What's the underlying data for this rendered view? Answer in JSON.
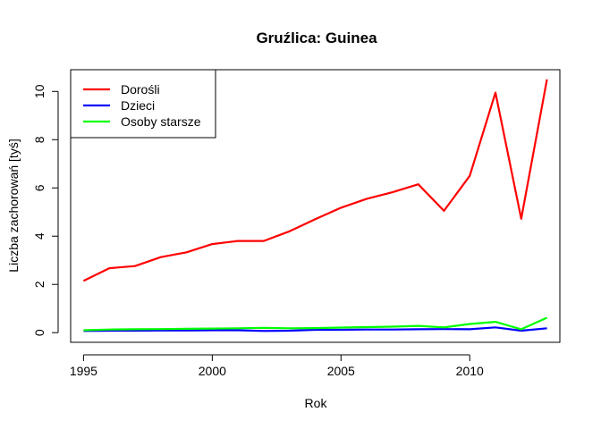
{
  "chart_data": {
    "type": "line",
    "title": "Gruźlica: Guinea",
    "xlabel": "Rok",
    "ylabel": "Liczba zachorowań [tyś]",
    "x": [
      1995,
      1996,
      1997,
      1998,
      1999,
      2000,
      2001,
      2002,
      2003,
      2004,
      2005,
      2006,
      2007,
      2008,
      2009,
      2010,
      2011,
      2012,
      2013
    ],
    "xlim": [
      1994.5,
      2013.5
    ],
    "ylim": [
      -0.4,
      10.9
    ],
    "xticks": [
      1995,
      2000,
      2005,
      2010
    ],
    "yticks": [
      0,
      2,
      4,
      6,
      8,
      10
    ],
    "grid": false,
    "legend_position": "top-left",
    "series": [
      {
        "name": "Dorośli",
        "color": "#ff0000",
        "values": [
          2.15,
          2.67,
          2.76,
          3.13,
          3.33,
          3.67,
          3.8,
          3.8,
          4.2,
          4.7,
          5.18,
          5.55,
          5.82,
          6.15,
          5.05,
          6.5,
          9.95,
          4.72,
          10.5
        ]
      },
      {
        "name": "Dzieci",
        "color": "#0000ff",
        "values": [
          0.07,
          0.08,
          0.08,
          0.09,
          0.09,
          0.1,
          0.1,
          0.07,
          0.08,
          0.12,
          0.12,
          0.13,
          0.13,
          0.14,
          0.15,
          0.14,
          0.22,
          0.08,
          0.18
        ]
      },
      {
        "name": "Osoby starsze",
        "color": "#00ff00",
        "values": [
          0.1,
          0.13,
          0.14,
          0.15,
          0.16,
          0.17,
          0.18,
          0.2,
          0.18,
          0.19,
          0.21,
          0.23,
          0.25,
          0.28,
          0.22,
          0.36,
          0.45,
          0.14,
          0.62
        ]
      }
    ]
  }
}
